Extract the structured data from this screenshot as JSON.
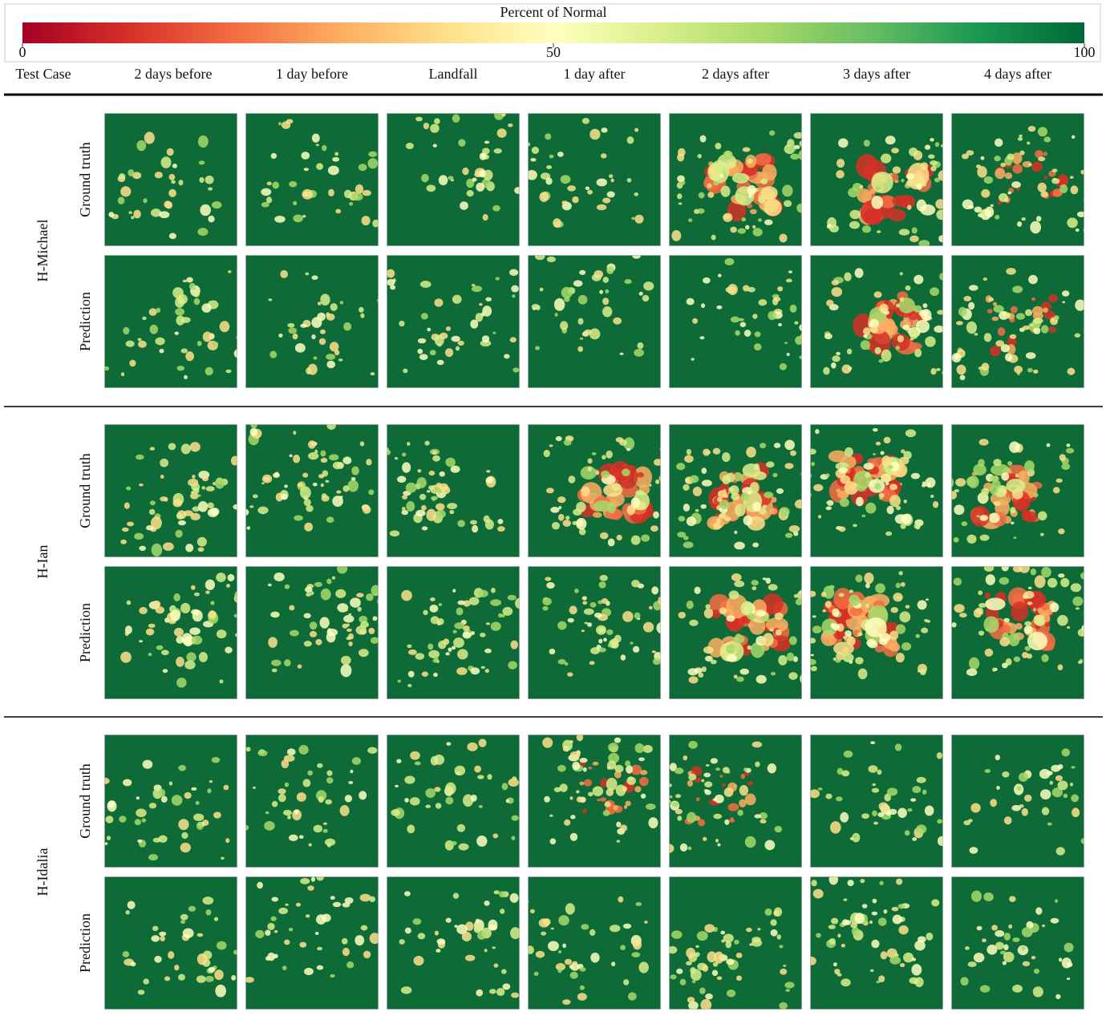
{
  "colorbar": {
    "label": "Percent of Normal",
    "lim": [
      0,
      100
    ],
    "ticks": [
      0,
      50,
      100
    ]
  },
  "columns": [
    "Test Case",
    "2 days before",
    "1 day before",
    "Landfall",
    "1 day after",
    "2 days after",
    "3 days after",
    "4 days after"
  ],
  "cases": [
    {
      "name": "H-Michael",
      "rows": [
        "Ground truth",
        "Prediction"
      ]
    },
    {
      "name": "H-Ian",
      "rows": [
        "Ground truth",
        "Prediction"
      ]
    },
    {
      "name": "H-Idalia",
      "rows": [
        "Ground truth",
        "Prediction"
      ]
    }
  ]
}
